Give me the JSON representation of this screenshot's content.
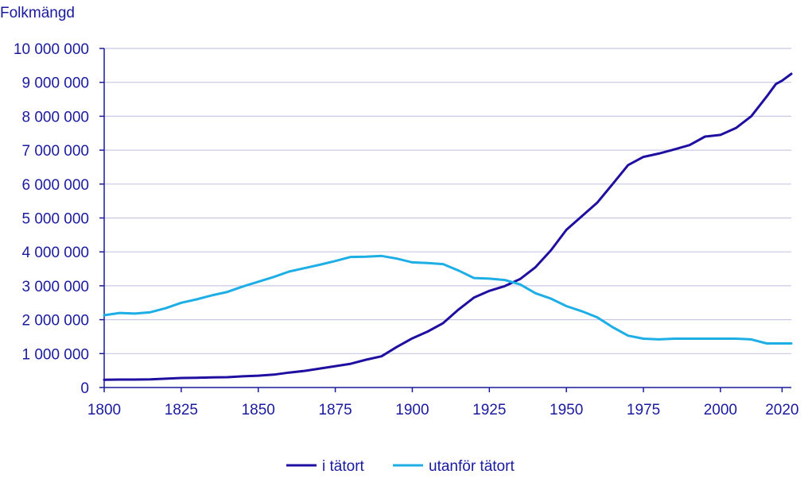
{
  "chart_data": {
    "type": "line",
    "ylabel": "Folkmängd",
    "xlabel": "",
    "xlim": [
      1800,
      2023
    ],
    "ylim": [
      0,
      10000000
    ],
    "x_ticks": [
      1800,
      1825,
      1850,
      1875,
      1900,
      1925,
      1950,
      1975,
      2000,
      2020
    ],
    "y_ticks": [
      0,
      1000000,
      2000000,
      3000000,
      4000000,
      5000000,
      6000000,
      7000000,
      8000000,
      9000000,
      10000000
    ],
    "y_tick_labels": [
      "0",
      "1 000 000",
      "2 000 000",
      "3 000 000",
      "4 000 000",
      "5 000 000",
      "6 000 000",
      "7 000 000",
      "8 000 000",
      "9 000 000",
      "10 000 000"
    ],
    "grid": "horizontal",
    "legend_position": "bottom",
    "colors": {
      "axis_text": "#1a1a9e",
      "grid": "#c8c8e6",
      "axis": "#1a1a9e"
    },
    "series": [
      {
        "name": "i tätort",
        "color": "#1e0fa0",
        "x": [
          1800,
          1805,
          1810,
          1815,
          1820,
          1825,
          1830,
          1835,
          1840,
          1845,
          1850,
          1855,
          1860,
          1865,
          1870,
          1875,
          1880,
          1885,
          1890,
          1895,
          1900,
          1905,
          1910,
          1915,
          1920,
          1925,
          1930,
          1935,
          1940,
          1945,
          1950,
          1955,
          1960,
          1965,
          1970,
          1975,
          1980,
          1985,
          1990,
          1995,
          2000,
          2005,
          2010,
          2015,
          2018,
          2020,
          2023
        ],
        "values": [
          230000,
          235000,
          235000,
          240000,
          260000,
          280000,
          285000,
          300000,
          305000,
          330000,
          350000,
          380000,
          440000,
          490000,
          560000,
          630000,
          700000,
          820000,
          920000,
          1200000,
          1450000,
          1650000,
          1900000,
          2300000,
          2650000,
          2850000,
          2990000,
          3200000,
          3550000,
          4050000,
          4650000,
          5050000,
          5450000,
          6000000,
          6560000,
          6800000,
          6900000,
          7020000,
          7150000,
          7400000,
          7450000,
          7650000,
          8000000,
          8580000,
          8950000,
          9050000,
          9250000
        ]
      },
      {
        "name": "utanför tätort",
        "color": "#1eaee6",
        "x": [
          1800,
          1805,
          1810,
          1815,
          1820,
          1825,
          1830,
          1835,
          1840,
          1845,
          1850,
          1855,
          1860,
          1865,
          1870,
          1875,
          1880,
          1885,
          1890,
          1895,
          1900,
          1905,
          1910,
          1915,
          1920,
          1925,
          1930,
          1935,
          1940,
          1945,
          1950,
          1955,
          1960,
          1965,
          1970,
          1975,
          1980,
          1985,
          1990,
          1995,
          2000,
          2005,
          2010,
          2015,
          2020,
          2023
        ],
        "values": [
          2130000,
          2200000,
          2180000,
          2220000,
          2340000,
          2500000,
          2600000,
          2720000,
          2820000,
          2980000,
          3120000,
          3260000,
          3420000,
          3520000,
          3620000,
          3730000,
          3850000,
          3860000,
          3880000,
          3800000,
          3690000,
          3670000,
          3640000,
          3450000,
          3230000,
          3210000,
          3170000,
          3040000,
          2780000,
          2620000,
          2400000,
          2250000,
          2070000,
          1780000,
          1530000,
          1440000,
          1420000,
          1440000,
          1440000,
          1440000,
          1440000,
          1440000,
          1420000,
          1300000,
          1300000,
          1300000
        ]
      }
    ]
  }
}
